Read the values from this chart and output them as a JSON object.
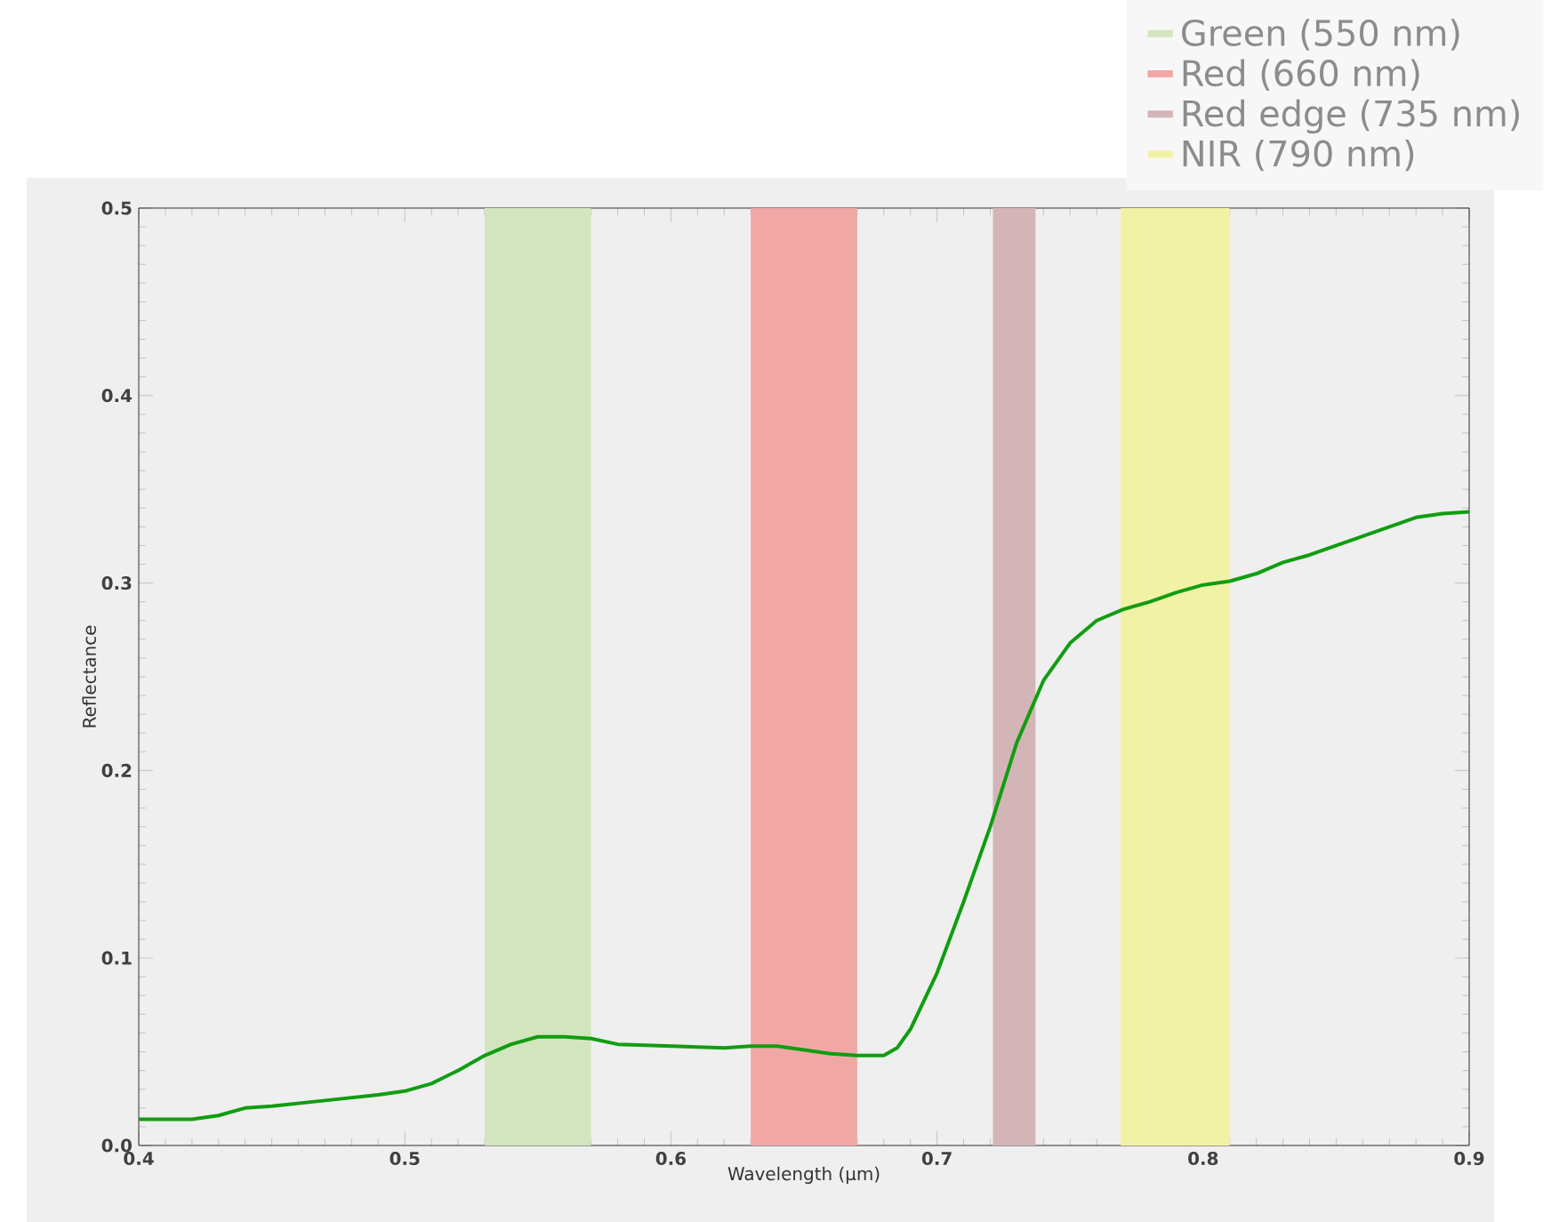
{
  "chart_data": {
    "type": "line",
    "xlabel": "Wavelength (µm)",
    "ylabel": "Reflectance",
    "xlim": [
      0.4,
      0.9
    ],
    "ylim": [
      0,
      0.5
    ],
    "xticks": [
      0.4,
      0.5,
      0.6,
      0.7,
      0.8,
      0.9
    ],
    "yticks": [
      {
        "value": 0,
        "label": "0.0"
      },
      0.1,
      0.2,
      0.3,
      0.4,
      0.5
    ],
    "x": [
      0.4,
      0.42,
      0.43,
      0.44,
      0.45,
      0.47,
      0.49,
      0.5,
      0.51,
      0.52,
      0.53,
      0.54,
      0.55,
      0.56,
      0.57,
      0.58,
      0.6,
      0.62,
      0.63,
      0.64,
      0.65,
      0.66,
      0.67,
      0.68,
      0.685,
      0.69,
      0.7,
      0.71,
      0.72,
      0.73,
      0.74,
      0.75,
      0.76,
      0.77,
      0.78,
      0.79,
      0.8,
      0.81,
      0.82,
      0.83,
      0.84,
      0.85,
      0.86,
      0.87,
      0.88,
      0.89,
      0.9
    ],
    "series": [
      {
        "color": "#109d10",
        "values": [
          0.014,
          0.014,
          0.016,
          0.02,
          0.021,
          0.024,
          0.027,
          0.029,
          0.033,
          0.04,
          0.048,
          0.054,
          0.058,
          0.058,
          0.057,
          0.054,
          0.053,
          0.052,
          0.053,
          0.053,
          0.051,
          0.049,
          0.048,
          0.048,
          0.052,
          0.062,
          0.092,
          0.13,
          0.17,
          0.215,
          0.248,
          0.268,
          0.28,
          0.286,
          0.29,
          0.295,
          0.299,
          0.301,
          0.305,
          0.311,
          0.315,
          0.32,
          0.325,
          0.33,
          0.335,
          0.337,
          0.338
        ]
      }
    ],
    "bands": [
      {
        "axis": "x",
        "from": 0.53,
        "to": 0.57,
        "label": "Green (550 nm)",
        "color": "#d3e5bf"
      },
      {
        "axis": "x",
        "from": 0.63,
        "to": 0.67,
        "label": "Red (660 nm)",
        "color": "#f2a7a7"
      },
      {
        "axis": "x",
        "from": 0.721,
        "to": 0.737,
        "label": "Red edge (735 nm)",
        "color": "#d4b5b7"
      },
      {
        "axis": "x",
        "from": 0.769,
        "to": 0.81,
        "label": "NIR (790 nm)",
        "color": "#f2f2a6"
      }
    ],
    "legend": "top right",
    "grid": false,
    "marker": "none",
    "line_style": "solid"
  }
}
